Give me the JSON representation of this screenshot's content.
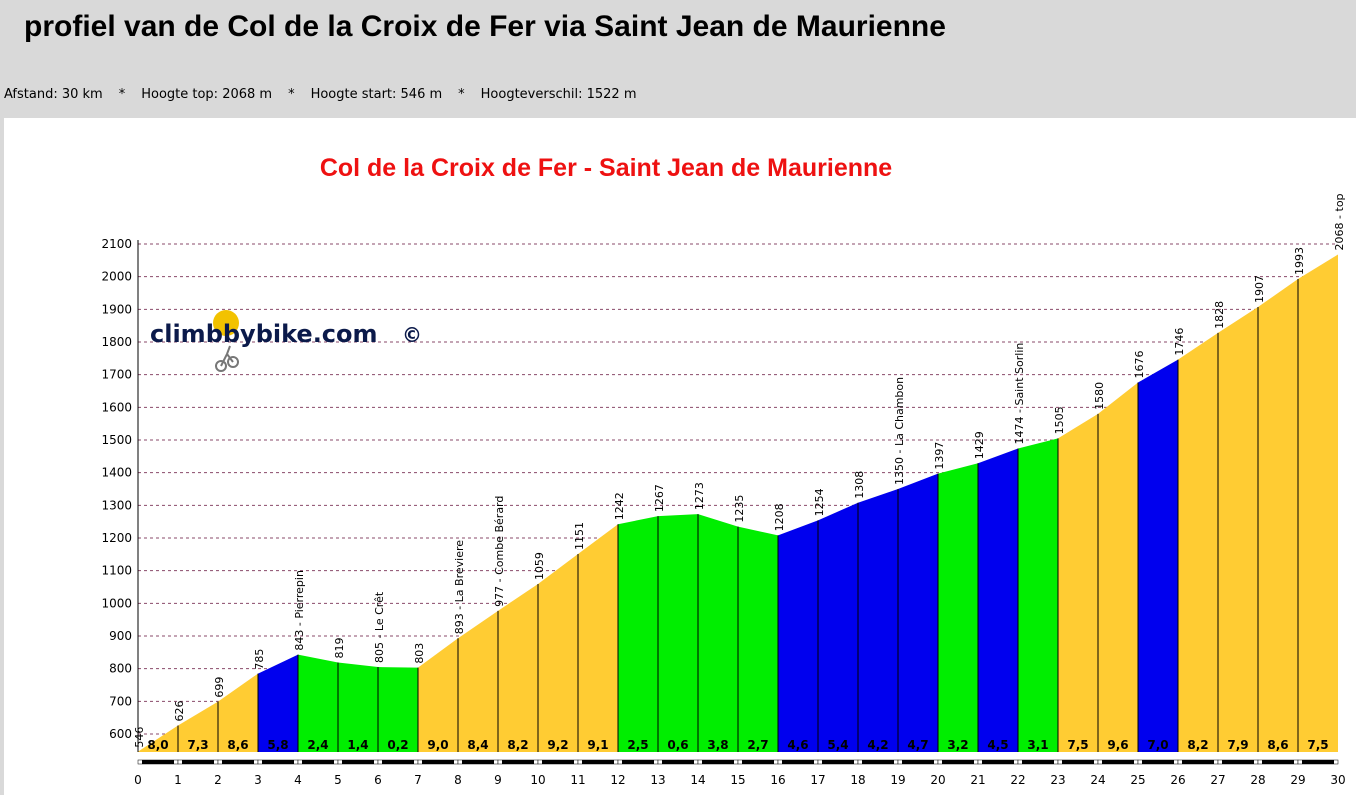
{
  "page": {
    "title": "profiel van de Col de la Croix de Fer via Saint Jean de Maurienne",
    "stats": {
      "distance": "Afstand: 30 km",
      "top": "Hoogte top: 2068 m",
      "start": "Hoogte start: 546 m",
      "diff": "Hoogteverschil: 1522 m",
      "separator": "*"
    }
  },
  "brand": {
    "text": "climbbybike.com",
    "copyright": "©"
  },
  "colors": {
    "yellow": "#ffcc33",
    "blue": "#0000ee",
    "green": "#00ee00",
    "title_red": "#ee1111",
    "grid": "#8a4a6a"
  },
  "chart_data": {
    "type": "area",
    "title": "Col de la Croix de Fer - Saint Jean de Maurienne",
    "xlim": [
      0,
      30
    ],
    "ylim": [
      546,
      2100
    ],
    "x_ticks": [
      0,
      1,
      2,
      3,
      4,
      5,
      6,
      7,
      8,
      9,
      10,
      11,
      12,
      13,
      14,
      15,
      16,
      17,
      18,
      19,
      20,
      21,
      22,
      23,
      24,
      25,
      26,
      27,
      28,
      29,
      30
    ],
    "y_ticks": [
      600,
      700,
      800,
      900,
      1000,
      1100,
      1200,
      1300,
      1400,
      1500,
      1600,
      1700,
      1800,
      1900,
      2000,
      2100
    ],
    "grid": "horizontal dashed",
    "km": [
      0,
      1,
      2,
      3,
      4,
      5,
      6,
      7,
      8,
      9,
      10,
      11,
      12,
      13,
      14,
      15,
      16,
      17,
      18,
      19,
      20,
      21,
      22,
      23,
      24,
      25,
      26,
      27,
      28,
      29,
      30
    ],
    "elevation": [
      546,
      626,
      699,
      785,
      843,
      819,
      805,
      803,
      893,
      977,
      1059,
      1151,
      1242,
      1267,
      1273,
      1235,
      1208,
      1254,
      1308,
      1350,
      1397,
      1429,
      1474,
      1505,
      1580,
      1676,
      1746,
      1828,
      1907,
      1993,
      2068
    ],
    "point_labels": [
      "546",
      "626",
      "699",
      "785",
      "843 - Pierrepin",
      "819",
      "805 - Le Crêt",
      "803",
      "893 - La Breviere",
      "977 - Combe Bérard",
      "1059",
      "1151",
      "1242",
      "1267",
      "1273",
      "1235",
      "1208",
      "1254",
      "1308",
      "1350 - La Chambon",
      "1397",
      "1429",
      "1474 - Saint Sorlin",
      "1505",
      "1580",
      "1676",
      "1746",
      "1828",
      "1907",
      "1993",
      "2068 - top"
    ],
    "grades": [
      "8,0",
      "7,3",
      "8,6",
      "5,8",
      "2,4",
      "1,4",
      "0,2",
      "9,0",
      "8,4",
      "8,2",
      "9,2",
      "9,1",
      "2,5",
      "0,6",
      "3,8",
      "2,7",
      "4,6",
      "5,4",
      "4,2",
      "4,7",
      "3,2",
      "4,5",
      "3,1",
      "7,5",
      "9,6",
      "7,0",
      "8,2",
      "7,9",
      "8,6",
      "7,5"
    ],
    "segment_colors": [
      "yellow",
      "yellow",
      "yellow",
      "blue",
      "green",
      "green",
      "green",
      "yellow",
      "yellow",
      "yellow",
      "yellow",
      "yellow",
      "green",
      "green",
      "green",
      "green",
      "blue",
      "blue",
      "blue",
      "blue",
      "green",
      "blue",
      "green",
      "yellow",
      "yellow",
      "blue",
      "yellow",
      "yellow",
      "yellow",
      "yellow"
    ]
  }
}
